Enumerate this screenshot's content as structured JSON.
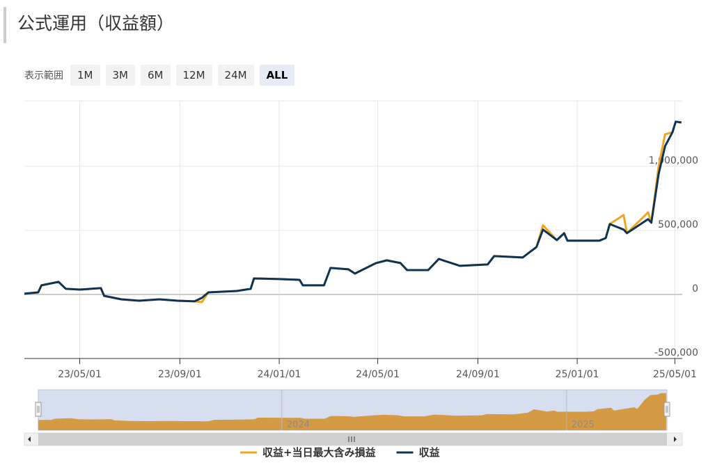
{
  "header": {
    "title": "公式運用（収益額）"
  },
  "range_selector": {
    "label": "表示範囲",
    "buttons": [
      "1M",
      "3M",
      "6M",
      "12M",
      "24M",
      "ALL"
    ],
    "selected": 5
  },
  "chart_data": {
    "type": "line",
    "x": [
      "23/02/22",
      "23/03/11",
      "23/03/15",
      "23/04/05",
      "23/04/14",
      "23/05/01",
      "23/05/27",
      "23/05/31",
      "23/06/21",
      "23/07/13",
      "23/08/07",
      "23/08/29",
      "23/09/19",
      "23/09/28",
      "23/10/06",
      "23/11/10",
      "23/11/27",
      "23/12/01",
      "24/01/01",
      "24/01/26",
      "24/01/30",
      "24/02/25",
      "24/03/04",
      "24/03/26",
      "24/04/03",
      "24/04/29",
      "24/05/12",
      "24/05/29",
      "24/06/06",
      "24/07/02",
      "24/07/15",
      "24/08/10",
      "24/09/13",
      "24/09/21",
      "24/10/26",
      "24/11/12",
      "24/11/20",
      "24/12/07",
      "24/12/16",
      "24/12/20",
      "25/01/28",
      "25/02/05",
      "25/02/10",
      "25/02/27",
      "25/03/03",
      "25/03/29",
      "25/04/02",
      "25/04/11",
      "25/04/19",
      "25/04/28",
      "25/05/02",
      "25/05/09"
    ],
    "series": [
      {
        "name": "収益+当日最大含み損益",
        "color": "#f0a51e",
        "values": [
          6000,
          16000,
          71000,
          98000,
          44000,
          38000,
          49000,
          -11000,
          -38000,
          -49000,
          -38000,
          -49000,
          -54000,
          -60000,
          16000,
          27000,
          44000,
          125000,
          120000,
          114000,
          71000,
          71000,
          207000,
          196000,
          163000,
          245000,
          266000,
          245000,
          190000,
          190000,
          277000,
          223000,
          234000,
          299000,
          288000,
          370000,
          540000,
          424000,
          478000,
          419000,
          419000,
          440000,
          549000,
          620000,
          478000,
          640000,
          560000,
          1000000,
          1250000,
          1266000,
          1348000,
          1342000
        ]
      },
      {
        "name": "収益",
        "color": "#0d3458",
        "values": [
          6000,
          16000,
          71000,
          98000,
          44000,
          38000,
          49000,
          -11000,
          -38000,
          -49000,
          -38000,
          -49000,
          -54000,
          -27000,
          16000,
          27000,
          44000,
          125000,
          120000,
          114000,
          71000,
          71000,
          207000,
          196000,
          163000,
          245000,
          266000,
          245000,
          190000,
          190000,
          277000,
          223000,
          234000,
          299000,
          288000,
          370000,
          506000,
          424000,
          478000,
          419000,
          419000,
          440000,
          549000,
          506000,
          478000,
          587000,
          560000,
          940000,
          1158000,
          1266000,
          1348000,
          1342000
        ]
      }
    ],
    "xlim": [
      "23/02/22",
      "25/05/10"
    ],
    "xticks": [
      "23/05/01",
      "23/09/01",
      "24/01/01",
      "24/05/01",
      "24/09/01",
      "25/01/01",
      "25/05/01"
    ],
    "ylim": [
      -500000,
      1510000
    ],
    "yticks": [
      {
        "value": -500000,
        "label": "-500,000"
      },
      0,
      {
        "value": 500000,
        "label": "500,000"
      },
      {
        "value": 1000000,
        "label": "1,000,000"
      }
    ],
    "grid": true,
    "navigator_xticks": [
      2024,
      2025
    ]
  }
}
